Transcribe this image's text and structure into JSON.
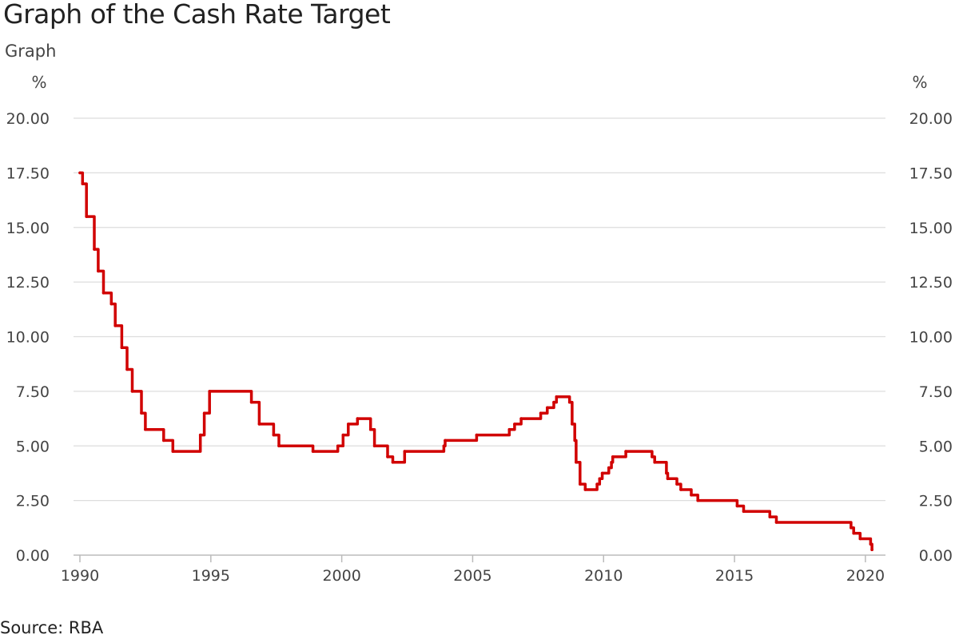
{
  "page": {
    "title": "Graph of the Cash Rate Target",
    "graph_label": "Graph",
    "source": "Source: RBA"
  },
  "chart_data": {
    "type": "line",
    "title": "Graph of the Cash Rate Target",
    "xlabel": "",
    "ylabel": "%",
    "y_unit_left": "%",
    "y_unit_right": "%",
    "xlim": [
      1990,
      2020.5
    ],
    "ylim": [
      0,
      20
    ],
    "y_ticks": [
      0,
      2.5,
      5,
      7.5,
      10,
      12.5,
      15,
      17.5,
      20
    ],
    "y_tick_labels": [
      "0.00",
      "2.50",
      "5.00",
      "7.50",
      "10.00",
      "12.50",
      "15.00",
      "17.50",
      "20.00"
    ],
    "x_ticks": [
      1990,
      1995,
      2000,
      2005,
      2010,
      2015,
      2020
    ],
    "x_tick_labels": [
      "1990",
      "1995",
      "2000",
      "2005",
      "2010",
      "2015",
      "2020"
    ],
    "grid": true,
    "legend": "none",
    "step": true,
    "series": [
      {
        "color": "#d10000",
        "points": [
          [
            1990.0,
            17.5
          ],
          [
            1990.1,
            17.0
          ],
          [
            1990.25,
            15.5
          ],
          [
            1990.55,
            14.0
          ],
          [
            1990.7,
            13.0
          ],
          [
            1990.9,
            12.0
          ],
          [
            1991.2,
            11.5
          ],
          [
            1991.35,
            10.5
          ],
          [
            1991.6,
            9.5
          ],
          [
            1991.8,
            8.5
          ],
          [
            1992.0,
            7.5
          ],
          [
            1992.35,
            6.5
          ],
          [
            1992.5,
            5.75
          ],
          [
            1993.2,
            5.25
          ],
          [
            1993.55,
            4.75
          ],
          [
            1994.6,
            5.5
          ],
          [
            1994.75,
            6.5
          ],
          [
            1994.95,
            7.5
          ],
          [
            1996.55,
            7.0
          ],
          [
            1996.85,
            6.0
          ],
          [
            1997.4,
            5.5
          ],
          [
            1997.6,
            5.0
          ],
          [
            1998.9,
            4.75
          ],
          [
            1999.85,
            5.0
          ],
          [
            2000.05,
            5.5
          ],
          [
            2000.25,
            6.0
          ],
          [
            2000.6,
            6.25
          ],
          [
            2001.1,
            5.75
          ],
          [
            2001.25,
            5.0
          ],
          [
            2001.75,
            4.5
          ],
          [
            2001.95,
            4.25
          ],
          [
            2002.4,
            4.75
          ],
          [
            2003.9,
            5.0
          ],
          [
            2003.95,
            5.25
          ],
          [
            2005.15,
            5.5
          ],
          [
            2006.4,
            5.75
          ],
          [
            2006.6,
            6.0
          ],
          [
            2006.85,
            6.25
          ],
          [
            2007.6,
            6.5
          ],
          [
            2007.85,
            6.75
          ],
          [
            2008.1,
            7.0
          ],
          [
            2008.2,
            7.25
          ],
          [
            2008.7,
            7.0
          ],
          [
            2008.8,
            6.0
          ],
          [
            2008.9,
            5.25
          ],
          [
            2008.95,
            4.25
          ],
          [
            2009.1,
            3.25
          ],
          [
            2009.3,
            3.0
          ],
          [
            2009.75,
            3.25
          ],
          [
            2009.85,
            3.5
          ],
          [
            2009.95,
            3.75
          ],
          [
            2010.2,
            4.0
          ],
          [
            2010.3,
            4.25
          ],
          [
            2010.35,
            4.5
          ],
          [
            2010.85,
            4.75
          ],
          [
            2011.85,
            4.5
          ],
          [
            2011.95,
            4.25
          ],
          [
            2012.4,
            3.75
          ],
          [
            2012.45,
            3.5
          ],
          [
            2012.8,
            3.25
          ],
          [
            2012.95,
            3.0
          ],
          [
            2013.35,
            2.75
          ],
          [
            2013.6,
            2.5
          ],
          [
            2015.1,
            2.25
          ],
          [
            2015.35,
            2.0
          ],
          [
            2016.35,
            1.75
          ],
          [
            2016.6,
            1.5
          ],
          [
            2019.45,
            1.25
          ],
          [
            2019.55,
            1.0
          ],
          [
            2019.8,
            0.75
          ],
          [
            2020.2,
            0.5
          ],
          [
            2020.25,
            0.25
          ]
        ]
      }
    ]
  }
}
